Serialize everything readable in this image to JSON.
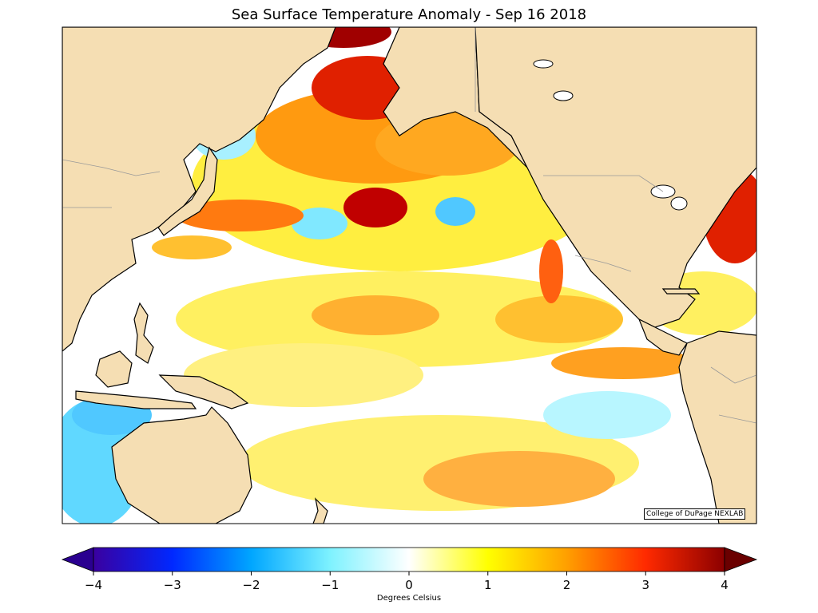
{
  "title": "Sea Surface Temperature Anomaly - Sep 16 2018",
  "credit": "College of DuPage NEXLAB",
  "colorbar": {
    "label": "Degrees Celsius",
    "min": -4,
    "max": 4,
    "ticks": [
      "−4",
      "−3",
      "−2",
      "−1",
      "0",
      "1",
      "2",
      "3",
      "4"
    ],
    "colors": [
      "#3a00a0",
      "#0028ff",
      "#00a6ff",
      "#7ef2ff",
      "#ffffff",
      "#ffff00",
      "#ff9f00",
      "#ff2a00",
      "#8b0000"
    ]
  },
  "map": {
    "land_color": "#f5deb3",
    "ocean_default": "#ffffff",
    "coast_color": "#000000",
    "border_color": "#999999"
  }
}
